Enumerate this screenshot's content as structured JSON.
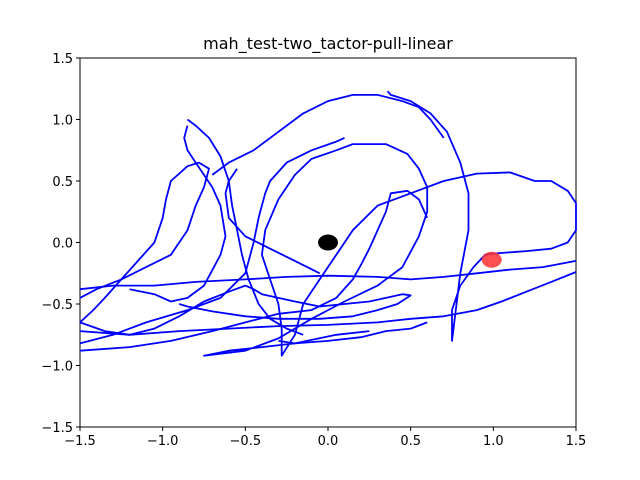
{
  "chart_data": {
    "type": "line",
    "title": "mah_test-two_tactor-pull-linear",
    "xlabel": "",
    "ylabel": "",
    "xlim": [
      -1.5,
      1.5
    ],
    "ylim": [
      -1.5,
      1.5
    ],
    "x_ticks": [
      -1.5,
      -1.0,
      -0.5,
      0.0,
      0.5,
      1.0,
      1.5
    ],
    "y_ticks": [
      -1.5,
      -1.0,
      -0.5,
      0.0,
      0.5,
      1.0,
      1.5
    ],
    "x_tick_labels": [
      "−1.5",
      "−1.0",
      "−0.5",
      "0.0",
      "0.5",
      "1.0",
      "1.5"
    ],
    "y_tick_labels": [
      "−1.5",
      "−1.0",
      "−0.5",
      "0.0",
      "0.5",
      "1.0",
      "1.5"
    ],
    "grid": false,
    "series": [
      {
        "color": "#0000ff",
        "points": [
          [
            0.25,
            -0.72
          ],
          [
            0.05,
            -0.75
          ],
          [
            -0.2,
            -0.82
          ],
          [
            -0.4,
            -0.85
          ],
          [
            -0.6,
            -0.88
          ],
          [
            -0.75,
            -0.92
          ],
          [
            -0.5,
            -0.88
          ],
          [
            -0.3,
            -0.78
          ],
          [
            -0.1,
            -0.62
          ],
          [
            0.1,
            -0.48
          ],
          [
            0.3,
            -0.35
          ],
          [
            0.45,
            -0.2
          ],
          [
            0.55,
            0.05
          ],
          [
            0.6,
            0.25
          ],
          [
            0.6,
            0.45
          ],
          [
            0.55,
            0.6
          ],
          [
            0.48,
            0.72
          ],
          [
            0.35,
            0.8
          ],
          [
            0.15,
            0.8
          ],
          [
            0.05,
            0.75
          ],
          [
            -0.1,
            0.68
          ],
          [
            -0.2,
            0.55
          ],
          [
            -0.3,
            0.35
          ],
          [
            -0.38,
            0.1
          ],
          [
            -0.4,
            -0.1
          ],
          [
            -0.35,
            -0.3
          ],
          [
            -0.3,
            -0.5
          ],
          [
            -0.28,
            -0.7
          ],
          [
            -0.28,
            -0.92
          ],
          [
            -0.2,
            -0.75
          ],
          [
            -0.15,
            -0.5
          ],
          [
            -0.05,
            -0.3
          ],
          [
            0.05,
            -0.1
          ],
          [
            0.15,
            0.1
          ],
          [
            0.3,
            0.3
          ],
          [
            0.5,
            0.4
          ],
          [
            0.7,
            0.5
          ],
          [
            0.9,
            0.56
          ],
          [
            1.1,
            0.57
          ],
          [
            1.25,
            0.5
          ],
          [
            1.35,
            0.5
          ],
          [
            1.45,
            0.42
          ],
          [
            1.5,
            0.32
          ],
          [
            1.5,
            0.1
          ],
          [
            1.45,
            0.0
          ],
          [
            1.35,
            -0.05
          ],
          [
            1.2,
            -0.07
          ],
          [
            1.1,
            -0.08
          ],
          [
            1.0,
            -0.09
          ],
          [
            0.95,
            -0.1
          ],
          [
            0.88,
            -0.2
          ],
          [
            0.8,
            -0.35
          ],
          [
            0.75,
            -0.55
          ],
          [
            0.75,
            -0.8
          ],
          [
            0.8,
            -0.25
          ],
          [
            0.85,
            0.1
          ],
          [
            0.85,
            0.4
          ],
          [
            0.8,
            0.65
          ],
          [
            0.72,
            0.9
          ],
          [
            0.62,
            1.05
          ],
          [
            0.5,
            1.15
          ],
          [
            0.38,
            1.2
          ],
          [
            0.36,
            1.23
          ]
        ]
      },
      {
        "color": "#0000ff",
        "points": [
          [
            -1.5,
            -0.45
          ],
          [
            -1.4,
            -0.38
          ],
          [
            -1.25,
            -0.3
          ],
          [
            -1.1,
            -0.2
          ],
          [
            -0.95,
            -0.1
          ],
          [
            -0.85,
            0.1
          ],
          [
            -0.8,
            0.3
          ],
          [
            -0.75,
            0.45
          ],
          [
            -0.72,
            0.6
          ],
          [
            -0.78,
            0.65
          ],
          [
            -0.85,
            0.62
          ],
          [
            -0.95,
            0.5
          ],
          [
            -0.98,
            0.35
          ],
          [
            -1.0,
            0.2
          ],
          [
            -1.05,
            0.0
          ],
          [
            -1.15,
            -0.15
          ],
          [
            -1.25,
            -0.3
          ],
          [
            -1.35,
            -0.45
          ],
          [
            -1.42,
            -0.55
          ],
          [
            -1.5,
            -0.65
          ]
        ]
      },
      {
        "color": "#0000ff",
        "points": [
          [
            -1.5,
            -0.65
          ],
          [
            -1.35,
            -0.72
          ],
          [
            -1.2,
            -0.75
          ],
          [
            -1.05,
            -0.7
          ],
          [
            -0.9,
            -0.6
          ],
          [
            -0.75,
            -0.48
          ],
          [
            -0.6,
            -0.4
          ],
          [
            -0.5,
            -0.35
          ],
          [
            -0.45,
            -0.38
          ],
          [
            -0.4,
            -0.42
          ],
          [
            -0.3,
            -0.45
          ],
          [
            -0.2,
            -0.48
          ],
          [
            -0.05,
            -0.52
          ],
          [
            0.1,
            -0.5
          ],
          [
            0.25,
            -0.48
          ],
          [
            0.35,
            -0.45
          ],
          [
            0.45,
            -0.42
          ],
          [
            0.5,
            -0.43
          ],
          [
            0.42,
            -0.5
          ],
          [
            0.3,
            -0.55
          ],
          [
            0.15,
            -0.6
          ],
          [
            -0.05,
            -0.62
          ],
          [
            -0.3,
            -0.62
          ],
          [
            -0.5,
            -0.6
          ],
          [
            -0.7,
            -0.56
          ],
          [
            -0.85,
            -0.52
          ],
          [
            -0.9,
            -0.5
          ]
        ]
      },
      {
        "color": "#0000ff",
        "points": [
          [
            -1.5,
            -0.72
          ],
          [
            -1.2,
            -0.75
          ],
          [
            -0.9,
            -0.72
          ],
          [
            -0.6,
            -0.7
          ],
          [
            -0.3,
            -0.68
          ],
          [
            0.0,
            -0.67
          ],
          [
            0.3,
            -0.65
          ],
          [
            0.5,
            -0.62
          ],
          [
            0.7,
            -0.6
          ],
          [
            0.9,
            -0.55
          ],
          [
            1.05,
            -0.48
          ],
          [
            1.2,
            -0.4
          ],
          [
            1.35,
            -0.32
          ],
          [
            1.5,
            -0.24
          ]
        ]
      },
      {
        "color": "#0000ff",
        "points": [
          [
            -1.5,
            -0.88
          ],
          [
            -1.2,
            -0.85
          ],
          [
            -0.95,
            -0.8
          ],
          [
            -0.7,
            -0.72
          ],
          [
            -0.5,
            -0.65
          ],
          [
            -0.3,
            -0.58
          ],
          [
            -0.1,
            -0.55
          ],
          [
            0.05,
            -0.45
          ],
          [
            0.15,
            -0.3
          ],
          [
            0.2,
            -0.18
          ],
          [
            0.25,
            -0.05
          ],
          [
            0.3,
            0.1
          ],
          [
            0.35,
            0.25
          ],
          [
            0.38,
            0.4
          ],
          [
            0.48,
            0.42
          ],
          [
            0.55,
            0.35
          ],
          [
            0.6,
            0.2
          ]
        ]
      },
      {
        "color": "#0000ff",
        "points": [
          [
            -1.5,
            -0.38
          ],
          [
            -1.3,
            -0.35
          ],
          [
            -1.05,
            -0.35
          ],
          [
            -0.8,
            -0.32
          ],
          [
            -0.5,
            -0.3
          ],
          [
            -0.25,
            -0.28
          ],
          [
            0.0,
            -0.27
          ],
          [
            0.3,
            -0.28
          ],
          [
            0.5,
            -0.3
          ],
          [
            0.7,
            -0.28
          ],
          [
            0.9,
            -0.25
          ],
          [
            1.1,
            -0.22
          ],
          [
            1.3,
            -0.2
          ],
          [
            1.5,
            -0.15
          ]
        ]
      },
      {
        "color": "#0000ff",
        "points": [
          [
            -1.5,
            -0.82
          ],
          [
            -1.3,
            -0.75
          ],
          [
            -1.1,
            -0.65
          ],
          [
            -0.85,
            -0.55
          ],
          [
            -0.65,
            -0.45
          ],
          [
            -0.5,
            -0.25
          ],
          [
            -0.45,
            0.0
          ],
          [
            -0.42,
            0.2
          ],
          [
            -0.38,
            0.4
          ],
          [
            -0.35,
            0.5
          ],
          [
            -0.25,
            0.65
          ],
          [
            -0.1,
            0.75
          ],
          [
            0.05,
            0.82
          ],
          [
            0.1,
            0.85
          ]
        ]
      },
      {
        "color": "#0000ff",
        "points": [
          [
            -0.85,
            1.0
          ],
          [
            -0.8,
            0.95
          ],
          [
            -0.72,
            0.85
          ],
          [
            -0.65,
            0.7
          ],
          [
            -0.6,
            0.5
          ],
          [
            -0.58,
            0.3
          ],
          [
            -0.55,
            0.1
          ],
          [
            -0.52,
            -0.1
          ],
          [
            -0.48,
            -0.3
          ],
          [
            -0.42,
            -0.5
          ],
          [
            -0.35,
            -0.62
          ],
          [
            -0.25,
            -0.7
          ],
          [
            -0.15,
            -0.75
          ]
        ]
      },
      {
        "color": "#0000ff",
        "points": [
          [
            -0.7,
            0.55
          ],
          [
            -0.6,
            0.65
          ],
          [
            -0.45,
            0.75
          ],
          [
            -0.3,
            0.9
          ],
          [
            -0.15,
            1.05
          ],
          [
            0.0,
            1.15
          ],
          [
            0.15,
            1.2
          ],
          [
            0.3,
            1.2
          ],
          [
            0.45,
            1.15
          ],
          [
            0.55,
            1.1
          ],
          [
            0.62,
            1.0
          ],
          [
            0.7,
            0.85
          ]
        ]
      },
      {
        "color": "#0000ff",
        "points": [
          [
            -1.2,
            -0.38
          ],
          [
            -1.05,
            -0.42
          ],
          [
            -0.95,
            -0.48
          ],
          [
            -0.85,
            -0.45
          ],
          [
            -0.75,
            -0.35
          ],
          [
            -0.65,
            -0.1
          ],
          [
            -0.62,
            0.05
          ],
          [
            -0.65,
            0.3
          ],
          [
            -0.7,
            0.45
          ],
          [
            -0.75,
            0.55
          ],
          [
            -0.8,
            0.65
          ],
          [
            -0.85,
            0.75
          ],
          [
            -0.87,
            0.85
          ],
          [
            -0.85,
            0.95
          ]
        ]
      },
      {
        "color": "#0000ff",
        "points": [
          [
            -0.3,
            -0.8
          ],
          [
            -0.2,
            -0.82
          ],
          [
            0.0,
            -0.8
          ],
          [
            0.2,
            -0.77
          ],
          [
            0.35,
            -0.72
          ],
          [
            0.5,
            -0.7
          ],
          [
            0.6,
            -0.65
          ]
        ]
      },
      {
        "color": "#0000ff",
        "points": [
          [
            -0.05,
            -0.25
          ],
          [
            -0.2,
            -0.15
          ],
          [
            -0.35,
            -0.05
          ],
          [
            -0.5,
            0.05
          ],
          [
            -0.6,
            0.2
          ],
          [
            -0.62,
            0.4
          ],
          [
            -0.6,
            0.5
          ],
          [
            -0.55,
            0.6
          ]
        ]
      }
    ],
    "markers": [
      {
        "x": 0.0,
        "y": 0.0,
        "color": "#000000",
        "label": ""
      },
      {
        "x": 0.99,
        "y": -0.14,
        "color": "#ff3333",
        "label": ""
      }
    ]
  }
}
